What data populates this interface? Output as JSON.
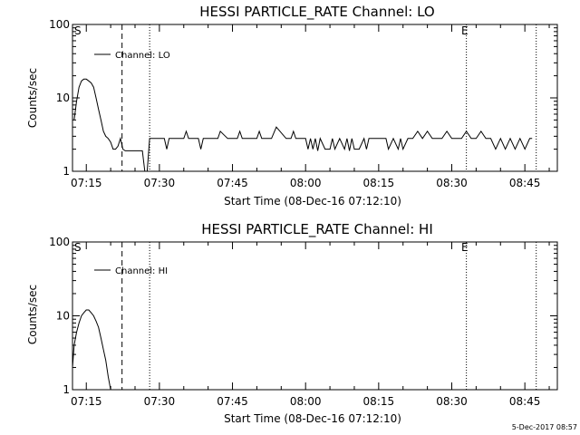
{
  "footer_date": "5-Dec-2017 08:57",
  "chart_data": [
    {
      "type": "line",
      "title": "HESSI PARTICLE_RATE Channel: LO",
      "xlabel": "Start Time (08-Dec-16 07:12:10)",
      "ylabel": "Counts/sec",
      "yscale": "log",
      "ylim": [
        1,
        100
      ],
      "xlim": [
        "07:12:10",
        "08:51:40"
      ],
      "x_ticks": [
        "07:15",
        "07:30",
        "07:45",
        "08:00",
        "08:15",
        "08:30",
        "08:45"
      ],
      "y_ticks": [
        "1",
        "10",
        "100"
      ],
      "legend": "Channel: LO",
      "markers": {
        "S_label": "S",
        "E_label": "E",
        "dashed": "07:22:20",
        "dotted": [
          "07:28:00",
          "08:33:00",
          "08:47:20"
        ]
      },
      "series": [
        {
          "x": [
            "07:12:30",
            "07:13:00",
            "07:13:30",
            "07:14:00",
            "07:14:30",
            "07:15:00",
            "07:15:30",
            "07:16:00",
            "07:16:30",
            "07:17:00",
            "07:17:30",
            "07:18:00",
            "07:18:30",
            "07:19:00",
            "07:19:30",
            "07:20:00",
            "07:20:30",
            "07:21:00",
            "07:21:30",
            "07:22:00",
            "07:22:30",
            "07:23:00",
            "07:24:00",
            "07:25:00",
            "07:25:20",
            "07:26:00",
            "07:26:30",
            "07:27:00",
            "07:27:30",
            "07:28:00",
            "07:30:00",
            "07:31:00",
            "07:31:30",
            "07:32:00",
            "07:34:00",
            "07:35:00",
            "07:35:30",
            "07:36:00",
            "07:38:00",
            "07:38:30",
            "07:39:00",
            "07:41:00",
            "07:42:00",
            "07:42:30",
            "07:44:00",
            "07:46:00",
            "07:46:30",
            "07:47:00",
            "07:49:00",
            "07:50:00",
            "07:50:30",
            "07:51:00",
            "07:53:00",
            "07:54:00",
            "07:56:00",
            "07:57:00",
            "07:57:30",
            "07:58:00",
            "08:00:00",
            "08:00:30",
            "08:01:00",
            "08:01:30",
            "08:02:00",
            "08:02:30",
            "08:03:00",
            "08:04:00",
            "08:05:00",
            "08:05:30",
            "08:06:00",
            "08:07:00",
            "08:08:00",
            "08:08:30",
            "08:09:00",
            "08:09:30",
            "08:10:00",
            "08:11:00",
            "08:12:00",
            "08:12:30",
            "08:13:00",
            "08:15:00",
            "08:16:00",
            "08:16:30",
            "08:17:00",
            "08:18:00",
            "08:19:00",
            "08:19:30",
            "08:20:00",
            "08:21:00",
            "08:22:00",
            "08:23:00",
            "08:24:00",
            "08:25:00",
            "08:26:00",
            "08:28:00",
            "08:29:00",
            "08:30:00",
            "08:31:00",
            "08:32:00",
            "08:33:00",
            "08:34:00",
            "08:35:00",
            "08:36:00",
            "08:37:00",
            "08:38:00",
            "08:39:00",
            "08:40:00",
            "08:41:00",
            "08:42:00",
            "08:43:00",
            "08:44:00",
            "08:45:00",
            "08:46:00",
            "08:46:30"
          ],
          "y": [
            5,
            9,
            14,
            17,
            18,
            18,
            17,
            16,
            14,
            10,
            7,
            5,
            3.5,
            3,
            2.8,
            2.5,
            2,
            2,
            2.2,
            2.8,
            2,
            1.9,
            1.9,
            1.9,
            1.9,
            1.9,
            1.9,
            1,
            1,
            2.8,
            2.8,
            2.8,
            2,
            2.8,
            2.8,
            2.8,
            3.5,
            2.8,
            2.8,
            2,
            2.8,
            2.8,
            2.8,
            3.5,
            2.8,
            2.8,
            3.5,
            2.8,
            2.8,
            2.8,
            3.5,
            2.8,
            2.8,
            4,
            2.8,
            2.8,
            3.5,
            2.8,
            2.8,
            2,
            2.8,
            2,
            2.8,
            1.9,
            2.8,
            2,
            2,
            2.8,
            2,
            2.8,
            2,
            2.8,
            1.9,
            2.8,
            2,
            2,
            2.8,
            2,
            2.8,
            2.8,
            2.8,
            2.8,
            2,
            2.8,
            2,
            2.8,
            2,
            2.8,
            2.8,
            3.5,
            2.8,
            3.5,
            2.8,
            2.8,
            3.5,
            2.8,
            2.8,
            2.8,
            3.5,
            2.8,
            2.8,
            3.5,
            2.8,
            2.8,
            2,
            2.8,
            2,
            2.8,
            2,
            2.8,
            2,
            2.8,
            2.8
          ]
        }
      ]
    },
    {
      "type": "line",
      "title": "HESSI PARTICLE_RATE Channel: HI",
      "xlabel": "Start Time (08-Dec-16 07:12:10)",
      "ylabel": "Counts/sec",
      "yscale": "log",
      "ylim": [
        1,
        100
      ],
      "xlim": [
        "07:12:10",
        "08:51:40"
      ],
      "x_ticks": [
        "07:15",
        "07:30",
        "07:45",
        "08:00",
        "08:15",
        "08:30",
        "08:45"
      ],
      "y_ticks": [
        "1",
        "10",
        "100"
      ],
      "legend": "Channel: HI",
      "markers": {
        "S_label": "S",
        "E_label": "E",
        "dashed": "07:22:20",
        "dotted": [
          "07:28:00",
          "08:33:00",
          "08:47:20"
        ]
      },
      "series": [
        {
          "x": [
            "07:12:10",
            "07:12:30",
            "07:13:00",
            "07:13:30",
            "07:14:00",
            "07:14:30",
            "07:15:00",
            "07:15:30",
            "07:16:00",
            "07:16:30",
            "07:17:00",
            "07:17:30",
            "07:18:00",
            "07:18:30",
            "07:19:00",
            "07:19:30",
            "07:20:00"
          ],
          "y": [
            2,
            4,
            6,
            8,
            10,
            11,
            12,
            12,
            11,
            10,
            8.5,
            7,
            5,
            3.5,
            2.5,
            1.5,
            1
          ]
        }
      ]
    }
  ]
}
